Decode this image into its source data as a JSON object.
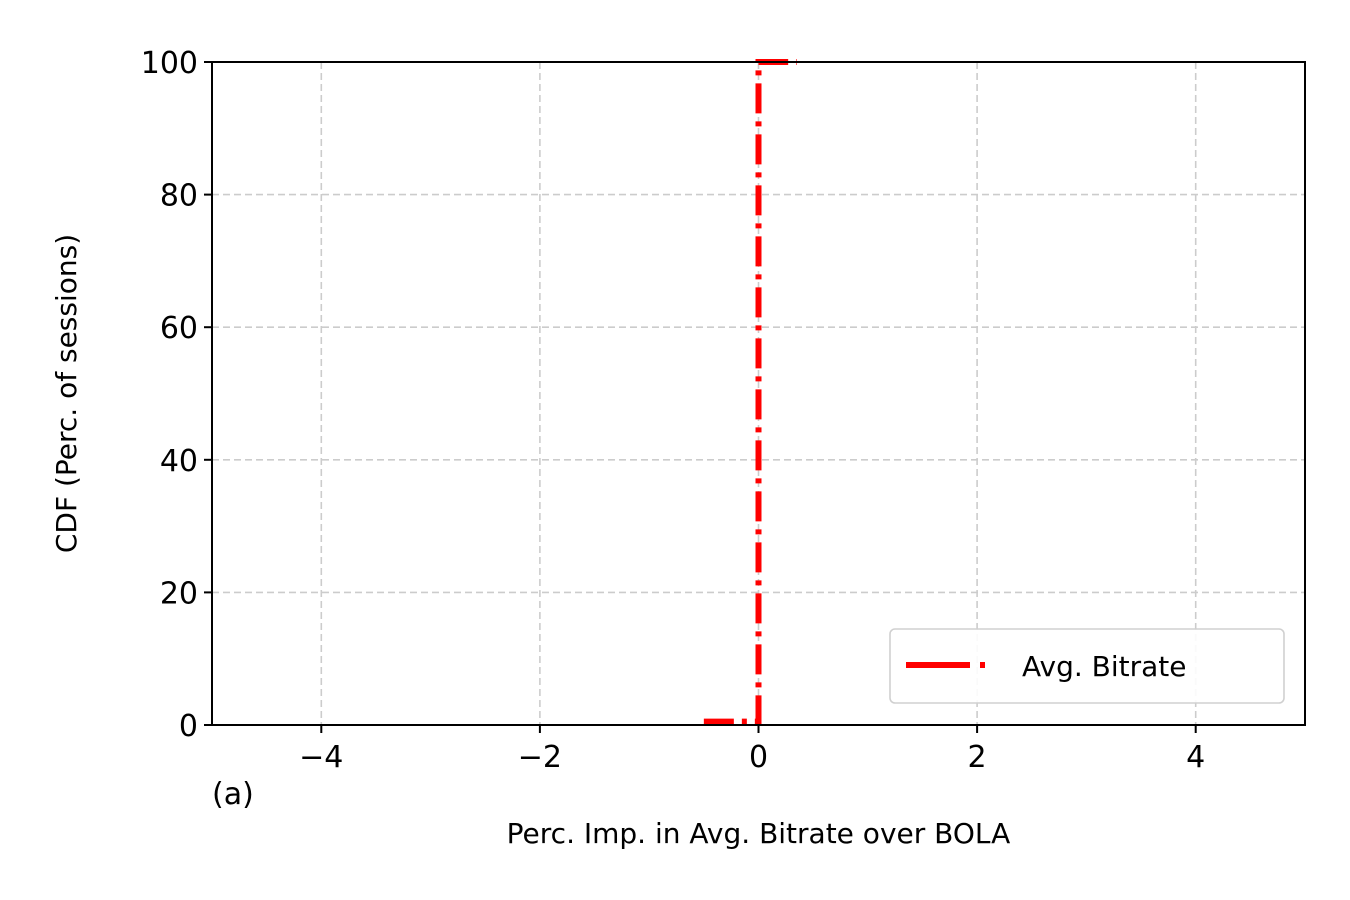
{
  "chart_data": {
    "type": "line",
    "panel_label": "(a)",
    "xlabel": "Perc. Imp. in Avg. Bitrate over BOLA",
    "ylabel": "CDF (Perc. of sessions)",
    "xlim": [
      -5,
      5
    ],
    "ylim": [
      0,
      100
    ],
    "xticks": [
      -4,
      -2,
      0,
      2,
      4
    ],
    "xtick_labels": [
      "−4",
      "−2",
      "0",
      "2",
      "4"
    ],
    "yticks": [
      0,
      20,
      40,
      60,
      80,
      100
    ],
    "ytick_labels": [
      "0",
      "20",
      "40",
      "60",
      "80",
      "100"
    ],
    "grid": true,
    "legend_position": "lower-right",
    "series": [
      {
        "name": "Avg. Bitrate",
        "color": "#ff0000",
        "linestyle": "dashdot",
        "x": [
          -0.5,
          0.0,
          0.0,
          0.35
        ],
        "y": [
          0.5,
          0.5,
          100,
          100
        ]
      }
    ]
  }
}
